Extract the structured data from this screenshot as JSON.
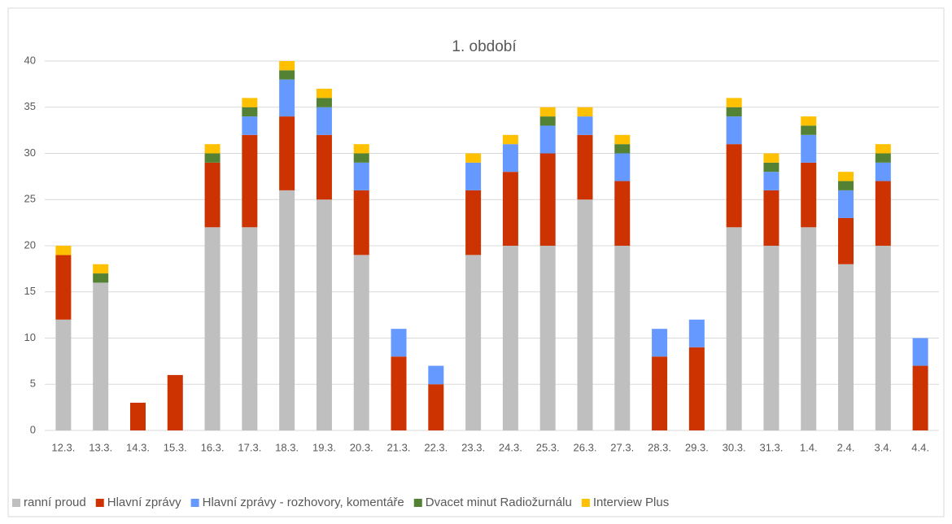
{
  "chart_data": {
    "type": "stacked_bar",
    "title": "1. období",
    "categories": [
      "12.3.",
      "13.3.",
      "14.3.",
      "15.3.",
      "16.3.",
      "17.3.",
      "18.3.",
      "19.3.",
      "20.3.",
      "21.3.",
      "22.3.",
      "23.3.",
      "24.3.",
      "25.3.",
      "26.3.",
      "27.3.",
      "28.3.",
      "29.3.",
      "30.3.",
      "31.3.",
      "1.4.",
      "2.4.",
      "3.4.",
      "4.4."
    ],
    "series": [
      {
        "name": "ranní proud",
        "color": "#bfbfbf",
        "values": [
          12,
          16,
          0,
          0,
          22,
          22,
          26,
          25,
          19,
          0,
          0,
          19,
          20,
          20,
          25,
          20,
          0,
          0,
          22,
          20,
          22,
          18,
          20,
          0
        ]
      },
      {
        "name": "Hlavní zprávy",
        "color": "#cc3300",
        "values": [
          7,
          0,
          3,
          6,
          7,
          10,
          8,
          7,
          7,
          8,
          5,
          7,
          8,
          10,
          7,
          7,
          8,
          9,
          9,
          6,
          7,
          5,
          7,
          7
        ]
      },
      {
        "name": "Hlavní zprávy - rozhovory, komentáře",
        "color": "#6699ff",
        "values": [
          0,
          0,
          0,
          0,
          0,
          2,
          4,
          3,
          3,
          3,
          2,
          3,
          3,
          3,
          2,
          3,
          3,
          3,
          3,
          2,
          3,
          3,
          2,
          3
        ]
      },
      {
        "name": "Dvacet minut Radiožurnálu",
        "color": "#548235",
        "values": [
          0,
          1,
          0,
          0,
          1,
          1,
          1,
          1,
          1,
          0,
          0,
          0,
          0,
          1,
          0,
          1,
          0,
          0,
          1,
          1,
          1,
          1,
          1,
          0
        ]
      },
      {
        "name": "Interview Plus",
        "color": "#ffc000",
        "values": [
          1,
          1,
          0,
          0,
          1,
          1,
          1,
          1,
          1,
          0,
          0,
          1,
          1,
          1,
          1,
          1,
          0,
          0,
          1,
          1,
          1,
          1,
          1,
          0
        ]
      }
    ],
    "ylim": [
      0,
      40
    ],
    "yticks": [
      0,
      5,
      10,
      15,
      20,
      25,
      30,
      35,
      40
    ],
    "grid": true,
    "legend": "bottom"
  }
}
